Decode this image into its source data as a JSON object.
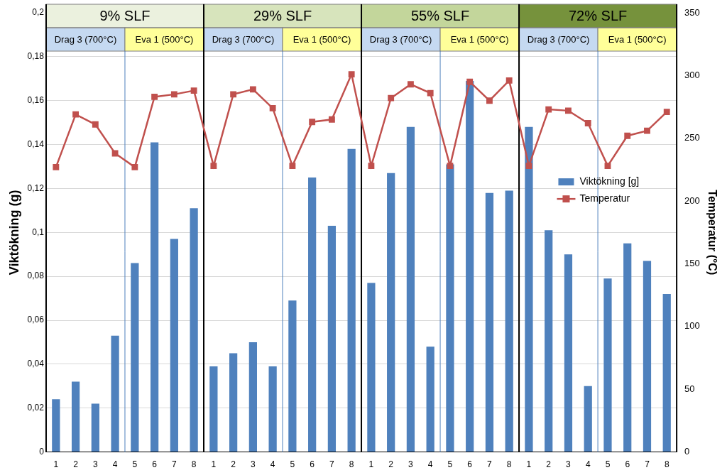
{
  "chart_data": {
    "type": "bar",
    "categories": [
      "1",
      "2",
      "3",
      "4",
      "5",
      "6",
      "7",
      "8",
      "1",
      "2",
      "3",
      "4",
      "5",
      "6",
      "7",
      "8",
      "1",
      "2",
      "3",
      "4",
      "5",
      "6",
      "7",
      "8",
      "1",
      "2",
      "3",
      "4",
      "5",
      "6",
      "7",
      "8"
    ],
    "groups": [
      {
        "label": "9% SLF",
        "color": "#ebf1de",
        "sections": [
          {
            "label": "Drag 3 (700°C)",
            "color": "#c5d9f1"
          },
          {
            "label": "Eva 1 (500°C)",
            "color": "#ffff99"
          }
        ]
      },
      {
        "label": "29% SLF",
        "color": "#d7e4bc",
        "sections": [
          {
            "label": "Drag 3 (700°C)",
            "color": "#c5d9f1"
          },
          {
            "label": "Eva 1 (500°C)",
            "color": "#ffff99"
          }
        ]
      },
      {
        "label": "55% SLF",
        "color": "#c3d69b",
        "sections": [
          {
            "label": "Drag 3 (700°C)",
            "color": "#c5d9f1"
          },
          {
            "label": "Eva 1 (500°C)",
            "color": "#ffff99"
          }
        ]
      },
      {
        "label": "72% SLF",
        "color": "#76923c",
        "sections": [
          {
            "label": "Drag 3 (700°C)",
            "color": "#c5d9f1"
          },
          {
            "label": "Eva 1 (500°C)",
            "color": "#ffff99"
          }
        ]
      }
    ],
    "series": [
      {
        "name": "Viktökning [g]",
        "type": "bar",
        "color": "#4f81bd",
        "values": [
          0.024,
          0.032,
          0.022,
          0.053,
          0.086,
          0.141,
          0.097,
          0.111,
          0.039,
          0.045,
          0.05,
          0.039,
          0.069,
          0.125,
          0.103,
          0.138,
          0.077,
          0.127,
          0.148,
          0.048,
          0.131,
          0.169,
          0.118,
          0.119,
          0.148,
          0.101,
          0.09,
          0.03,
          0.079,
          0.095,
          0.087,
          0.072
        ]
      },
      {
        "name": "Temperatur",
        "type": "line",
        "color": "#c0504d",
        "marker": "square",
        "axis": "y2",
        "values": [
          227,
          269,
          261,
          238,
          227,
          283,
          285,
          288,
          228,
          285,
          289,
          274,
          228,
          263,
          265,
          301,
          228,
          282,
          293,
          286,
          228,
          295,
          280,
          296,
          228,
          273,
          272,
          262,
          228,
          252,
          256,
          271
        ]
      }
    ],
    "y_label": "Viktökning (g)",
    "y2_label": "Temperatur (°C)",
    "ylim": [
      0,
      0.2
    ],
    "yticks": [
      0,
      {
        "value": 0.02,
        "label": "0,02"
      },
      {
        "value": 0.04,
        "label": "0,04"
      },
      {
        "value": 0.06,
        "label": "0,06"
      },
      {
        "value": 0.08,
        "label": "0,08"
      },
      {
        "value": 0.1,
        "label": "0,1"
      },
      {
        "value": 0.12,
        "label": "0,12"
      },
      {
        "value": 0.14,
        "label": "0,14"
      },
      {
        "value": 0.16,
        "label": "0,16"
      },
      {
        "value": 0.18,
        "label": "0,18"
      },
      {
        "value": 0.2,
        "label": "0,2"
      }
    ],
    "y2lim": [
      0,
      350
    ],
    "y2ticks": [
      0,
      50,
      100,
      150,
      200,
      250,
      300,
      350
    ],
    "grid": true,
    "legend": "right"
  }
}
